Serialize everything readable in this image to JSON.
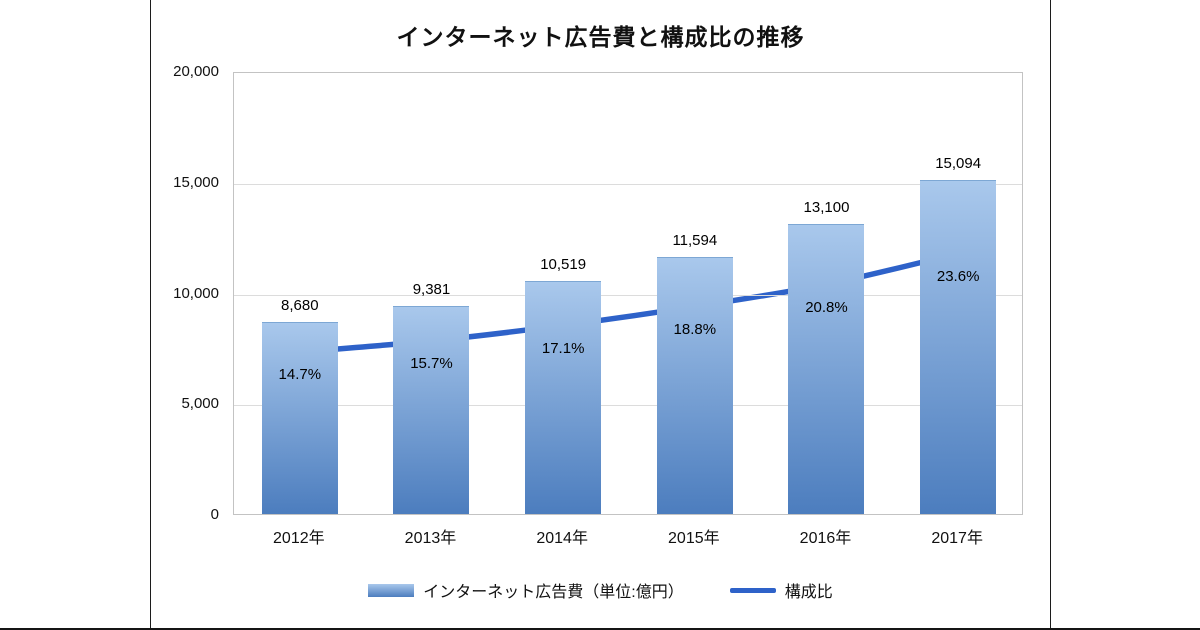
{
  "chart_data": {
    "type": "bar",
    "title": "インターネット広告費と構成比の推移",
    "categories": [
      "2012年",
      "2013年",
      "2014年",
      "2015年",
      "2016年",
      "2017年"
    ],
    "series": [
      {
        "name": "インターネット広告費（単位:億円）",
        "type": "bar",
        "values": [
          8680,
          9381,
          10519,
          11594,
          13100,
          15094
        ],
        "labels": [
          "8,680",
          "9,381",
          "10,519",
          "11,594",
          "13,100",
          "15,094"
        ],
        "axis": "primary"
      },
      {
        "name": "構成比",
        "type": "line",
        "values": [
          14.7,
          15.7,
          17.1,
          18.8,
          20.8,
          23.6
        ],
        "labels": [
          "14.7%",
          "15.7%",
          "17.1%",
          "18.8%",
          "20.8%",
          "23.6%"
        ],
        "axis": "secondary"
      }
    ],
    "y_axis": {
      "min": 0,
      "max": 20000,
      "ticks": [
        0,
        5000,
        10000,
        15000,
        20000
      ],
      "tick_labels": [
        "0",
        "5,000",
        "10,000",
        "15,000",
        "20,000"
      ]
    },
    "y2_axis": {
      "min": 0,
      "max": 40
    },
    "grid": true,
    "legend_position": "bottom"
  },
  "legend": {
    "bar_label": "インターネット広告費（単位:億円）",
    "line_label": "構成比"
  },
  "colors": {
    "bar_top": "#a9c8ec",
    "bar_bottom": "#4c7dbe",
    "line": "#2e62c9",
    "grid": "#dcdcdc",
    "plot_border": "#c3c3c3",
    "text": "#000000"
  }
}
